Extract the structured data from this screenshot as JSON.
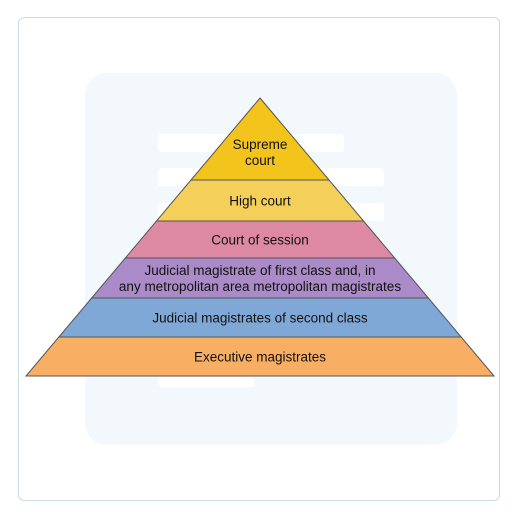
{
  "diagram": {
    "type": "pyramid",
    "levels": [
      {
        "lines": [
          "Supreme",
          "court"
        ],
        "color": "#f2c41c"
      },
      {
        "lines": [
          "High court"
        ],
        "color": "#f4d05a"
      },
      {
        "lines": [
          "Court of session"
        ],
        "color": "#dd89a4"
      },
      {
        "lines": [
          "Judicial magistrate of first class and, in",
          "any metropolitan area metropolitan magistrates"
        ],
        "color": "#ab8ac8"
      },
      {
        "lines": [
          "Judicial magistrates of second class"
        ],
        "color": "#80a8d6"
      },
      {
        "lines": [
          "Executive magistrates"
        ],
        "color": "#f8af64"
      }
    ],
    "stroke_color": "#555555"
  }
}
